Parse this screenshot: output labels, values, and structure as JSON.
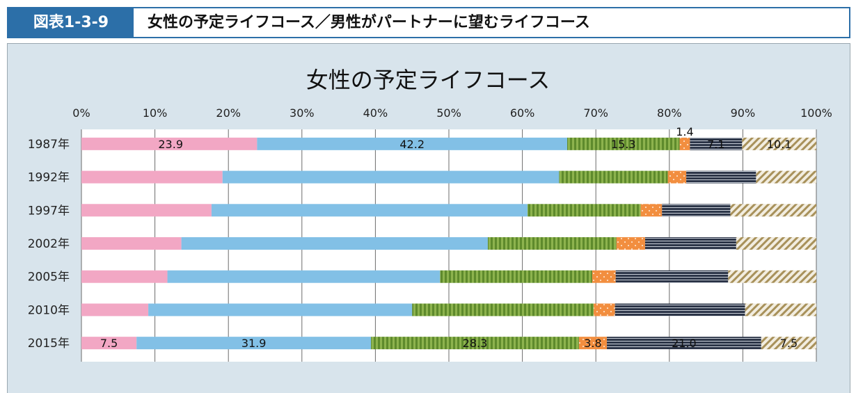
{
  "header": {
    "figure_label": "図表1-3-9",
    "title": "女性の予定ライフコース／男性がパートナーに望むライフコース"
  },
  "chart_data": {
    "type": "bar",
    "stacked": true,
    "orientation": "horizontal",
    "title": "女性の予定ライフコース",
    "xlim": [
      0,
      100
    ],
    "x_ticks": [
      "0%",
      "10%",
      "20%",
      "30%",
      "40%",
      "50%",
      "60%",
      "70%",
      "80%",
      "90%",
      "100%"
    ],
    "categories": [
      "1987年",
      "1992年",
      "1997年",
      "2002年",
      "2005年",
      "2010年",
      "2015年"
    ],
    "series": [
      {
        "color": "#f2a7c4",
        "pattern": "solid",
        "values": [
          23.9,
          19.2,
          17.7,
          13.6,
          11.7,
          9.1,
          7.5
        ]
      },
      {
        "color": "#82c0e6",
        "pattern": "solid",
        "values": [
          42.2,
          45.8,
          43.0,
          41.7,
          37.1,
          35.9,
          31.9
        ]
      },
      {
        "color": "#7fa540",
        "pattern": "vertical-stripes",
        "values": [
          15.3,
          14.8,
          15.4,
          17.5,
          20.7,
          24.7,
          28.3
        ]
      },
      {
        "color": "#f28e3f",
        "pattern": "dots",
        "values": [
          1.4,
          2.5,
          2.9,
          3.9,
          3.2,
          2.9,
          3.8
        ]
      },
      {
        "color": "#2c3548",
        "pattern": "horizontal-stripes",
        "values": [
          7.1,
          9.5,
          9.3,
          12.4,
          15.3,
          17.7,
          21.0
        ]
      },
      {
        "color": "#c2ae7c",
        "pattern": "diagonal-stripes",
        "values": [
          10.1,
          8.2,
          11.7,
          10.9,
          12.0,
          9.7,
          7.5
        ]
      }
    ],
    "data_labels": {
      "1987年": [
        "23.9",
        "42.2",
        "15.3",
        "1.4",
        "7.1",
        "10.1"
      ],
      "2015年": [
        "7.5",
        "31.9",
        "28.3",
        "3.8",
        "21.0",
        "7.5"
      ]
    },
    "grid": true
  }
}
